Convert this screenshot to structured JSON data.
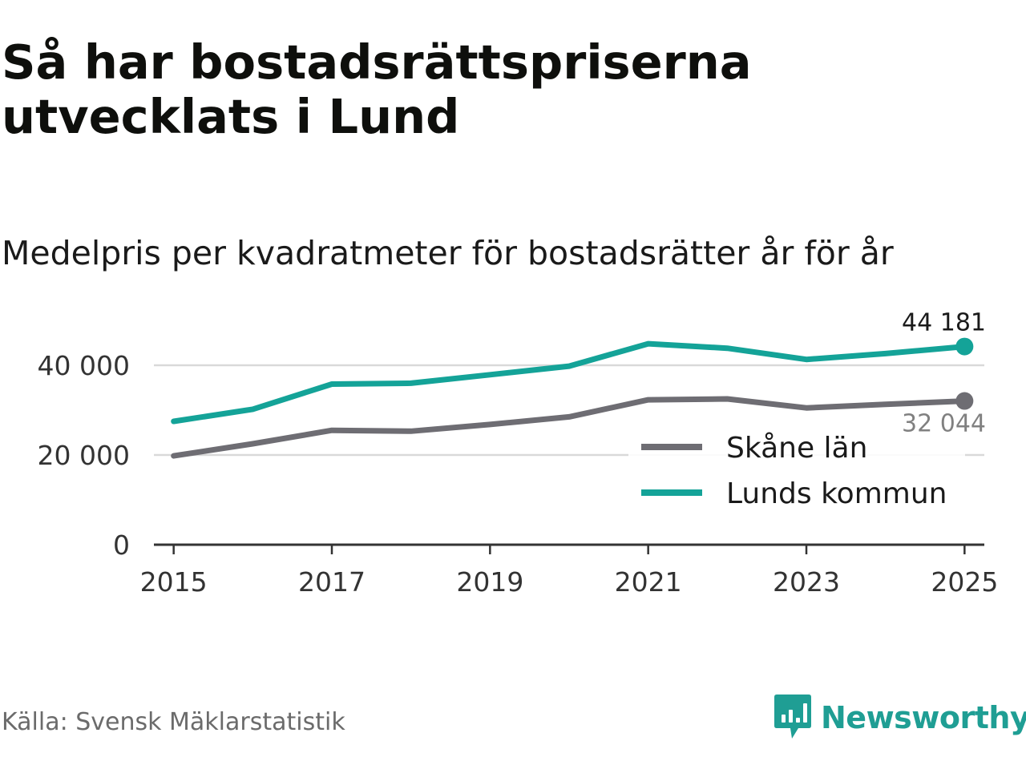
{
  "title": "Så har bostadsrättspriserna utvecklats i Lund",
  "subtitle": "Medelpris per kvadratmeter för bostadsrätter år för år",
  "source": "Källa: Svensk Mäklarstatistik",
  "brand": {
    "name": "Newsworthy",
    "icon": "newsworthy-logo-icon",
    "color": "#1f9e94"
  },
  "chart_data": {
    "type": "line",
    "title": "Medelpris per kvadratmeter för bostadsrätter år för år",
    "xlabel": "",
    "ylabel": "",
    "x": [
      2015,
      2016,
      2017,
      2018,
      2019,
      2020,
      2021,
      2022,
      2023,
      2024,
      2025
    ],
    "x_ticks": [
      2015,
      2017,
      2019,
      2021,
      2023,
      2025
    ],
    "x_tick_labels": [
      "2015",
      "2017",
      "2019",
      "2021",
      "2023",
      "2025"
    ],
    "y_ticks": [
      0,
      20000,
      40000
    ],
    "y_tick_labels": [
      "0",
      "20 000",
      "40 000"
    ],
    "xlim": [
      2014.75,
      2025.25
    ],
    "ylim": [
      0,
      50000
    ],
    "grid": true,
    "legend_position": "bottom-right",
    "series": [
      {
        "name": "Skåne län",
        "color": "#6e6d73",
        "values": [
          19800,
          22500,
          25500,
          25300,
          26800,
          28500,
          32300,
          32500,
          30500,
          31300,
          32044
        ],
        "end_label": "32 044"
      },
      {
        "name": "Lunds kommun",
        "color": "#14a398",
        "values": [
          27500,
          30200,
          35800,
          36000,
          37900,
          39800,
          44800,
          43800,
          41300,
          42600,
          44181
        ],
        "end_label": "44 181"
      }
    ]
  }
}
